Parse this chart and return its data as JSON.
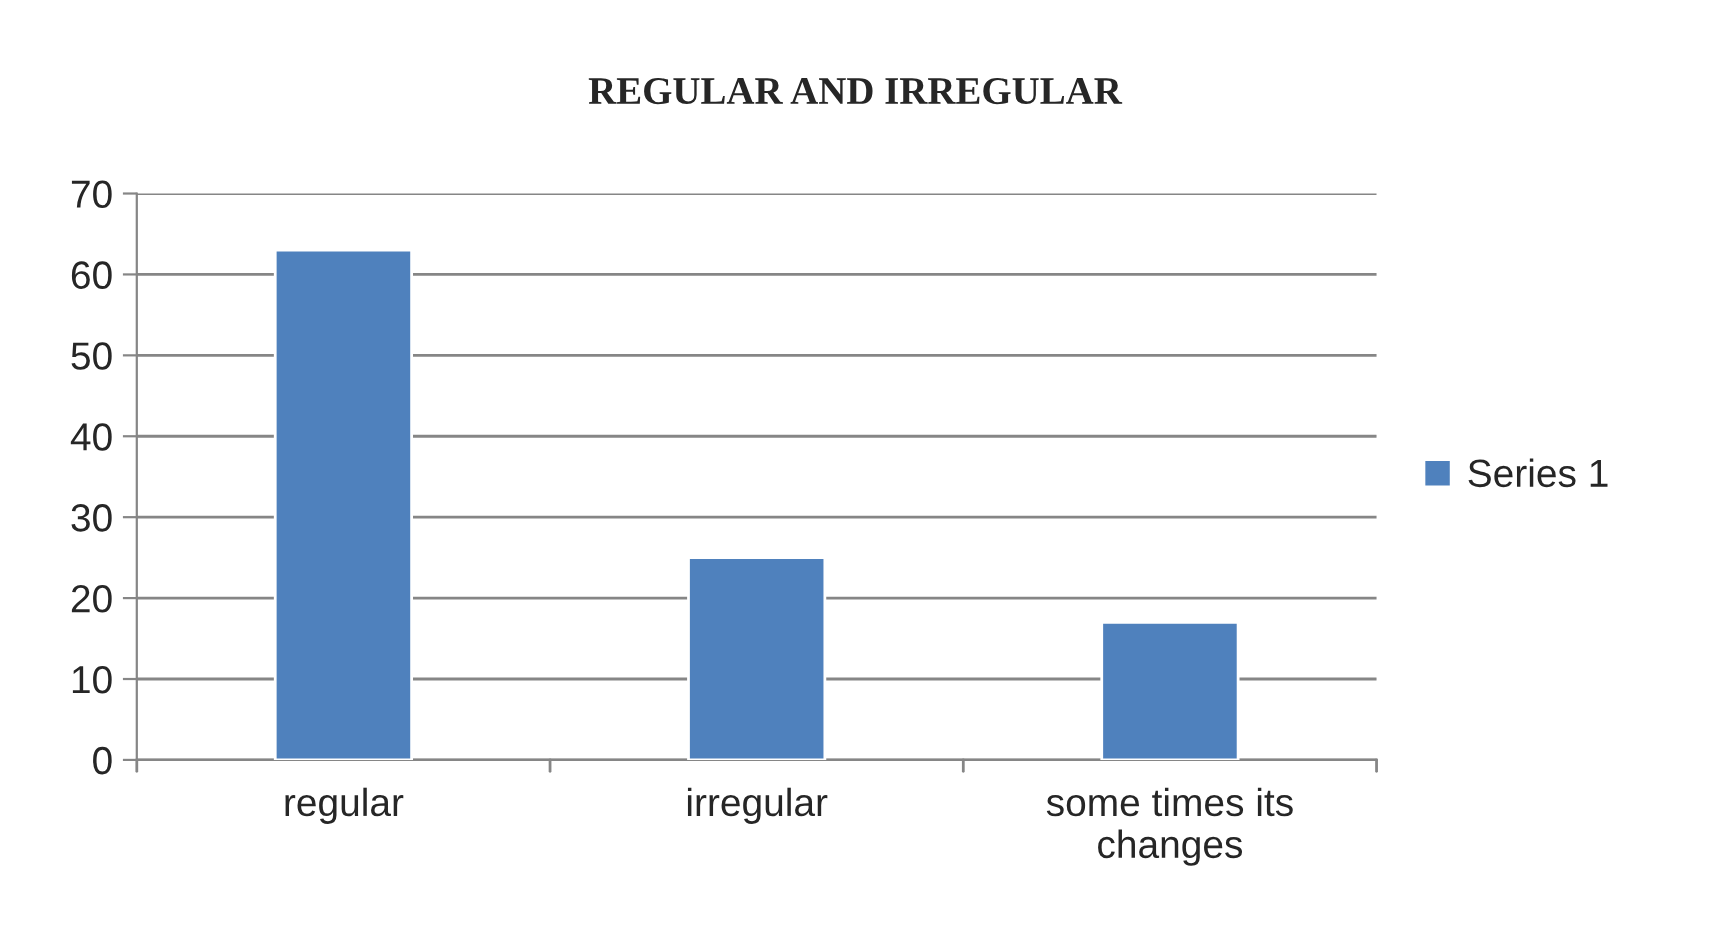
{
  "chart_data": {
    "type": "bar",
    "title": "REGULAR AND IRREGULAR",
    "categories": [
      "regular",
      "irregular",
      "some times its changes"
    ],
    "series": [
      {
        "name": "Series 1",
        "color": "#4f81bd",
        "values": [
          63,
          25,
          17
        ]
      }
    ],
    "ylim": [
      0,
      70
    ],
    "yticks": [
      0,
      10,
      20,
      30,
      40,
      50,
      60,
      70
    ],
    "grid": "y",
    "legend": "right"
  }
}
